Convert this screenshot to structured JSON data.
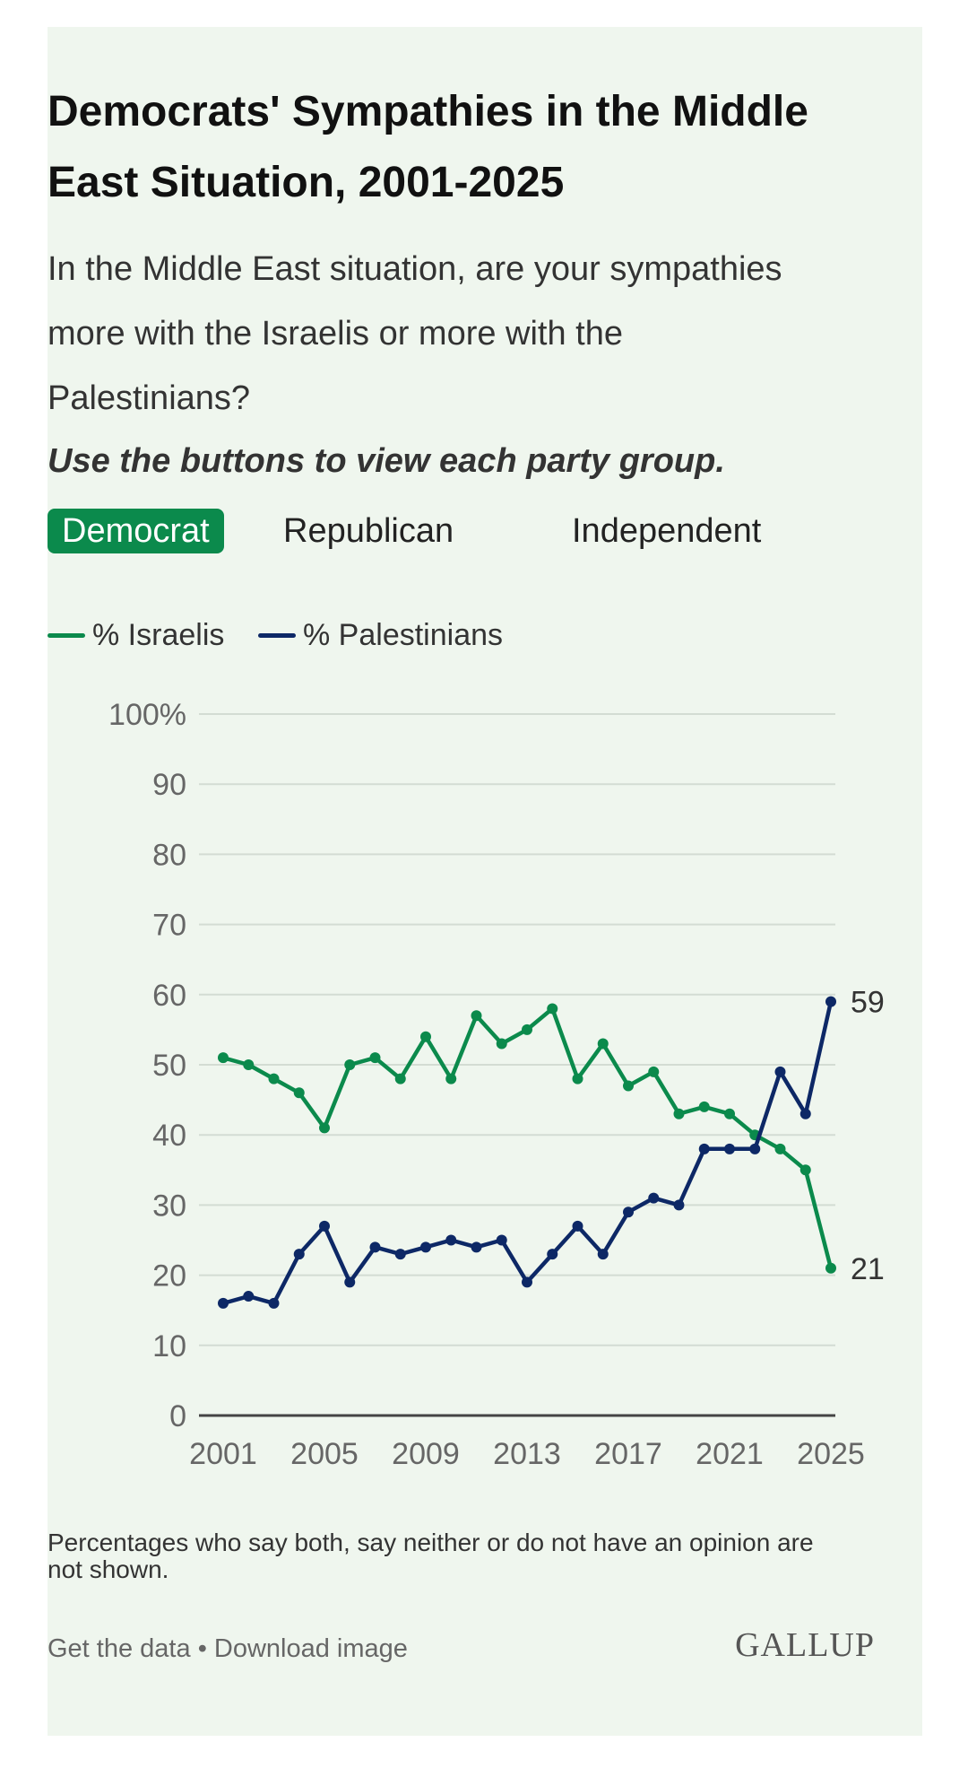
{
  "header": {
    "title": "Democrats' Sympathies in the Middle East Situation, 2001-2025",
    "question": "In the Middle East situation, are your sympathies more with the Israelis or more with the Palestinians?",
    "instruction": "Use the buttons to view each party group."
  },
  "party_buttons": {
    "active": "Democrat",
    "items": [
      {
        "label": "Democrat"
      },
      {
        "label": "Republican"
      },
      {
        "label": "Independent"
      }
    ]
  },
  "colors": {
    "card_background": "#eff6ee",
    "israelis": "#0b8a4c",
    "palestinians": "#0d2866",
    "active_button": "#0b8a4c"
  },
  "chart_data": {
    "type": "line",
    "x": [
      2001,
      2002,
      2003,
      2004,
      2005,
      2006,
      2007,
      2008,
      2009,
      2010,
      2011,
      2012,
      2013,
      2014,
      2015,
      2016,
      2017,
      2018,
      2019,
      2020,
      2021,
      2022,
      2023,
      2024,
      2025
    ],
    "series": [
      {
        "name": "% Israelis",
        "values": [
          51,
          50,
          48,
          46,
          41,
          50,
          51,
          48,
          54,
          48,
          57,
          53,
          55,
          58,
          48,
          53,
          47,
          49,
          43,
          44,
          43,
          40,
          38,
          35,
          21
        ]
      },
      {
        "name": "% Palestinians",
        "values": [
          16,
          17,
          16,
          23,
          27,
          19,
          24,
          23,
          24,
          25,
          24,
          25,
          19,
          23,
          27,
          23,
          29,
          31,
          30,
          38,
          38,
          38,
          49,
          43,
          59
        ]
      }
    ],
    "ylim": [
      0,
      100
    ],
    "y_ticks": [
      "0",
      "10",
      "20",
      "30",
      "40",
      "50",
      "60",
      "70",
      "80",
      "90",
      "100%"
    ],
    "x_ticks": [
      "2001",
      "2005",
      "2009",
      "2013",
      "2017",
      "2021",
      "2025"
    ],
    "end_labels": [
      "21",
      "59"
    ],
    "grid": true,
    "legend_position": "top-left"
  },
  "footnote": "Percentages who say both, say neither or do not have an opinion are not shown.",
  "footer": {
    "get_data": "Get the data",
    "separator": "•",
    "download": "Download image",
    "logo": "GALLUP"
  }
}
